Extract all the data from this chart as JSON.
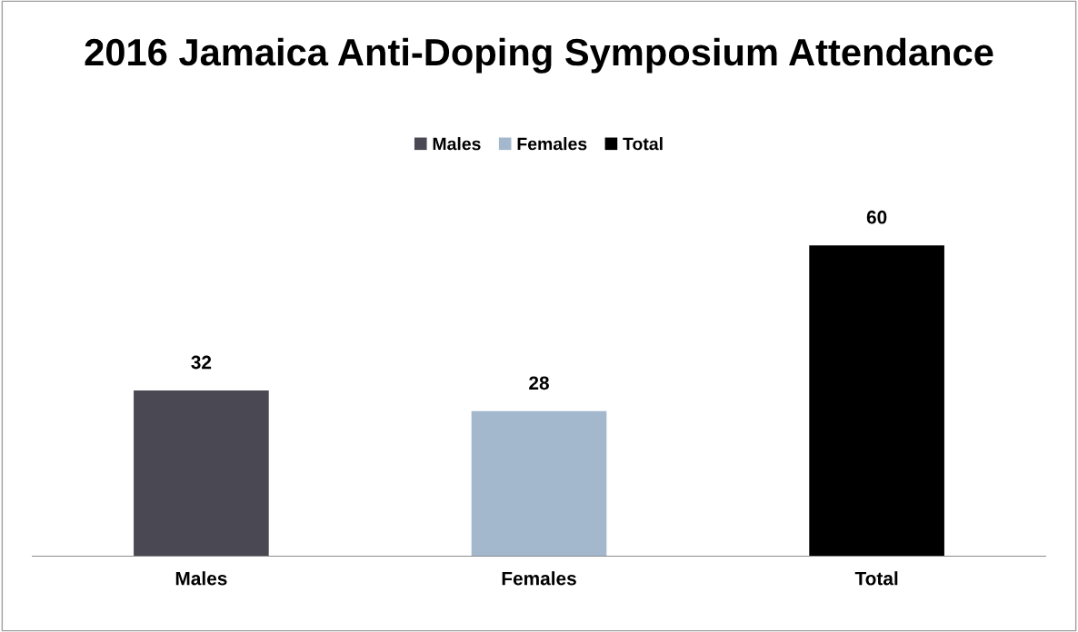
{
  "chart_data": {
    "type": "bar",
    "title": "2016 Jamaica Anti-Doping Symposium Attendance",
    "categories": [
      "Males",
      "Females",
      "Total"
    ],
    "series": [
      {
        "name": "Males",
        "color": "#4a4953",
        "values": [
          32,
          null,
          null
        ]
      },
      {
        "name": "Females",
        "color": "#a3b8cd",
        "values": [
          null,
          28,
          null
        ]
      },
      {
        "name": "Total",
        "color": "#000000",
        "values": [
          null,
          null,
          60
        ]
      }
    ],
    "stacked": true,
    "data_labels": true,
    "legend": "top",
    "grid": false
  }
}
